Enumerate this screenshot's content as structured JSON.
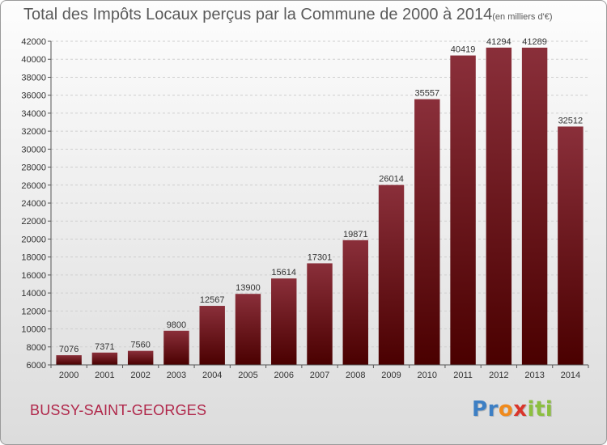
{
  "header": {
    "title": "Total des Impôts Locaux perçus par la Commune de 2000 à 2014",
    "unit": "(en milliers d'€)"
  },
  "commune": "BUSSY-SAINT-GEORGES",
  "logo": {
    "letters": [
      "P",
      "r",
      "o",
      "x",
      "i",
      "t",
      "i"
    ],
    "colors": [
      "#3d7fc4",
      "#3d7fc4",
      "#f08a1c",
      "#d9352b",
      "#8cbf3f",
      "#8cbf3f",
      "#8cbf3f"
    ]
  },
  "colors": {
    "bar_top": "#8a2f3a",
    "bar_bottom": "#4a0000",
    "grid": "#cfcfcf",
    "text": "#333333"
  },
  "chart_data": {
    "type": "bar",
    "categories": [
      "2000",
      "2001",
      "2002",
      "2003",
      "2004",
      "2005",
      "2006",
      "2007",
      "2008",
      "2009",
      "2010",
      "2011",
      "2012",
      "2013",
      "2014"
    ],
    "values": [
      7076,
      7371,
      7560,
      9800,
      12567,
      13900,
      15614,
      17301,
      19871,
      26014,
      35557,
      40419,
      41294,
      41289,
      32512
    ],
    "ylim": [
      6000,
      42000
    ],
    "yticks": [
      6000,
      8000,
      10000,
      12000,
      14000,
      16000,
      18000,
      20000,
      22000,
      24000,
      26000,
      28000,
      30000,
      32000,
      34000,
      36000,
      38000,
      40000,
      42000
    ],
    "grid": true,
    "data_labels": true
  }
}
